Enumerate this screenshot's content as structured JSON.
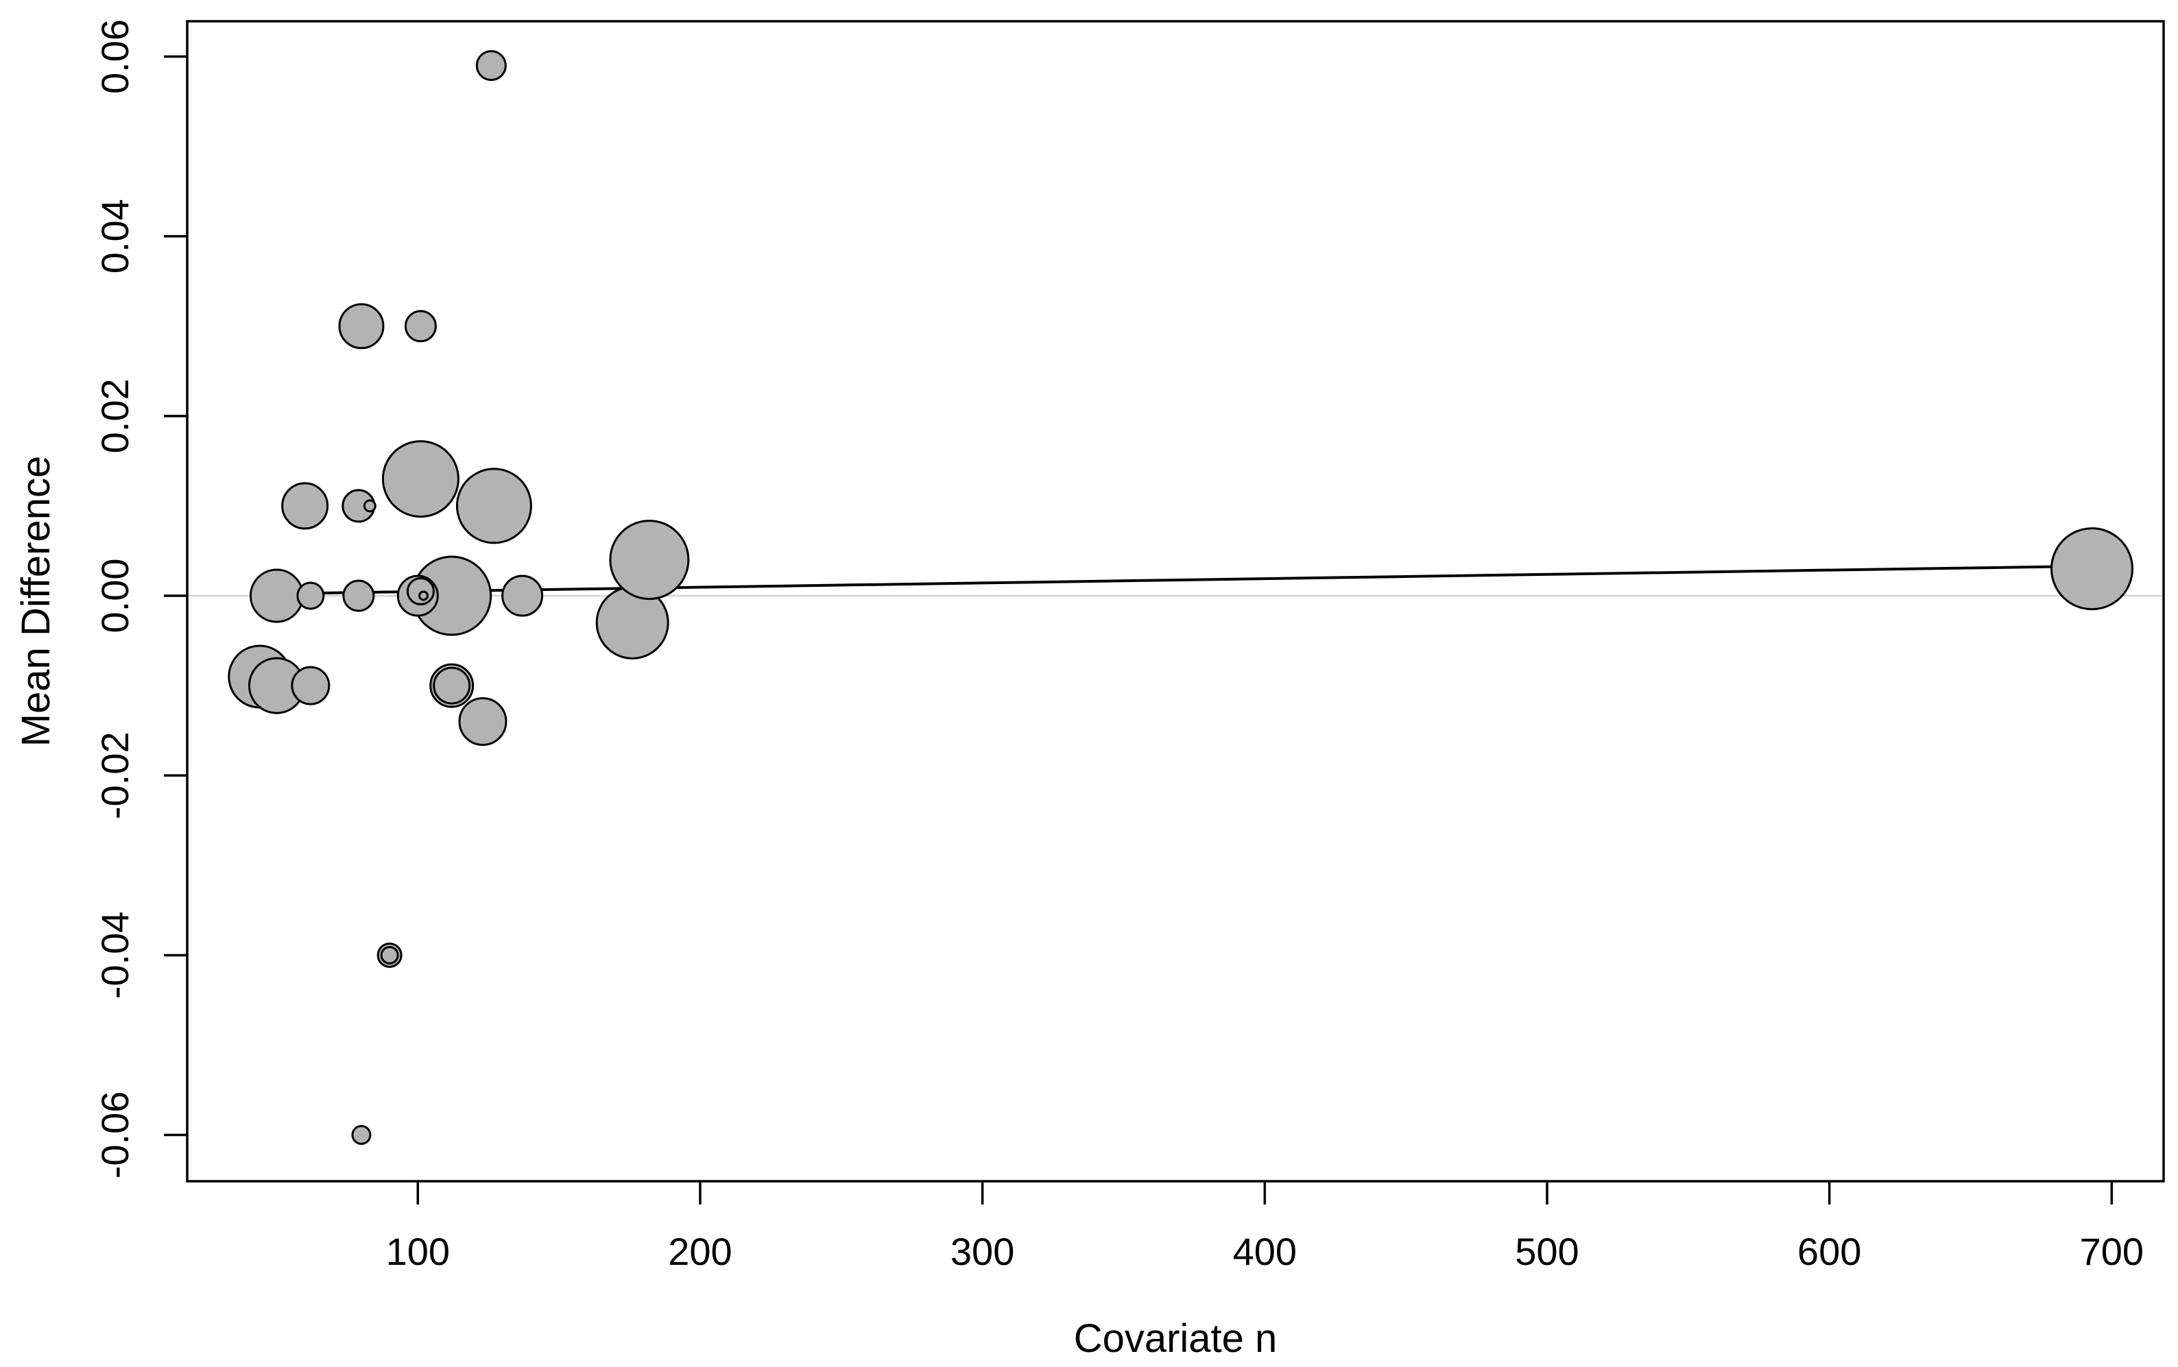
{
  "chart_data": {
    "type": "scatter",
    "subtype": "bubble-meta-regression",
    "title": "",
    "xlabel": "Covariate n",
    "ylabel": "Mean Difference",
    "x_ticks": [
      100,
      200,
      300,
      400,
      500,
      600,
      700
    ],
    "y_ticks": [
      {
        "value": 0.06,
        "label": "0.06"
      },
      {
        "value": 0.04,
        "label": "0.04"
      },
      {
        "value": 0.02,
        "label": "0.02"
      },
      {
        "value": 0.0,
        "label": "0.00"
      },
      {
        "value": -0.02,
        "label": "-0.02"
      },
      {
        "value": -0.04,
        "label": "-0.04"
      },
      {
        "value": -0.06,
        "label": "-0.06"
      }
    ],
    "xlim": [
      18,
      719
    ],
    "ylim": [
      -0.065,
      0.064
    ],
    "grid": false,
    "legend": null,
    "zero_reference_line": 0.0,
    "regression_line": {
      "x": [
        44,
        693
      ],
      "y": [
        0.0002,
        0.0033
      ]
    },
    "points": [
      {
        "n": 44,
        "md": -0.009,
        "r": 45
      },
      {
        "n": 50,
        "md": -0.01,
        "r": 40
      },
      {
        "n": 62,
        "md": -0.01,
        "r": 27
      },
      {
        "n": 50,
        "md": 0.0,
        "r": 38
      },
      {
        "n": 62,
        "md": 0.0,
        "r": 19
      },
      {
        "n": 79,
        "md": 0.0,
        "r": 22
      },
      {
        "n": 112,
        "md": 0.0,
        "r": 57
      },
      {
        "n": 100,
        "md": 0.0,
        "r": 29
      },
      {
        "n": 101,
        "md": 0.0005,
        "r": 19
      },
      {
        "n": 102,
        "md": 0.0,
        "r": 6
      },
      {
        "n": 137,
        "md": 0.0,
        "r": 29
      },
      {
        "n": 60,
        "md": 0.01,
        "r": 33
      },
      {
        "n": 79,
        "md": 0.01,
        "r": 23
      },
      {
        "n": 83,
        "md": 0.01,
        "r": 8
      },
      {
        "n": 101,
        "md": 0.013,
        "r": 55
      },
      {
        "n": 127,
        "md": 0.01,
        "r": 54
      },
      {
        "n": 80,
        "md": 0.03,
        "r": 32
      },
      {
        "n": 101,
        "md": 0.03,
        "r": 22
      },
      {
        "n": 126,
        "md": 0.059,
        "r": 21
      },
      {
        "n": 112,
        "md": -0.01,
        "r": 31
      },
      {
        "n": 112,
        "md": -0.01,
        "r": 26
      },
      {
        "n": 123,
        "md": -0.014,
        "r": 34
      },
      {
        "n": 90,
        "md": -0.04,
        "r": 17
      },
      {
        "n": 90,
        "md": -0.04,
        "r": 12
      },
      {
        "n": 80,
        "md": -0.06,
        "r": 13
      },
      {
        "n": 176,
        "md": -0.003,
        "r": 52
      },
      {
        "n": 182,
        "md": 0.004,
        "r": 57
      },
      {
        "n": 693,
        "md": 0.003,
        "r": 59
      }
    ],
    "colors": {
      "bubble_fill": "#b3b3b3",
      "bubble_stroke": "#000000",
      "regression_line": "#000000",
      "zero_line": "#d9d9d9",
      "axis": "#000000",
      "background": "#ffffff"
    }
  }
}
